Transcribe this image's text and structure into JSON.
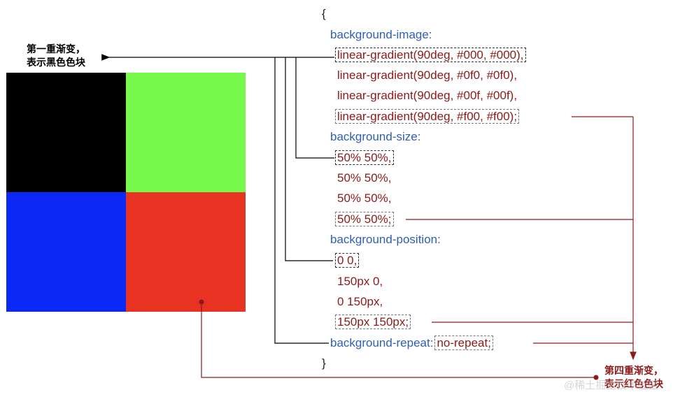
{
  "annotations": {
    "first": [
      "第一重渐变，",
      "表示黑色色块"
    ],
    "fourth": [
      "第四重渐变，",
      "表示红色色块"
    ]
  },
  "code": {
    "open": "{",
    "close": "}",
    "image": {
      "property": "background-image:",
      "values": [
        "linear-gradient(90deg, #000, #000),",
        "linear-gradient(90deg, #0f0, #0f0),",
        "linear-gradient(90deg, #00f, #00f),",
        "linear-gradient(90deg, #f00, #f00);"
      ]
    },
    "size": {
      "property": "background-size:",
      "values": [
        "50% 50%,",
        "50% 50%,",
        "50% 50%,",
        "50% 50%;"
      ]
    },
    "position": {
      "property": "background-position:",
      "values": [
        "0 0,",
        "150px 0,",
        "0 150px,",
        "150px 150px;"
      ]
    },
    "repeat": {
      "property": "background-repeat:",
      "value": "no-repeat;"
    }
  },
  "watermark": "@稀土掘金技术社区"
}
